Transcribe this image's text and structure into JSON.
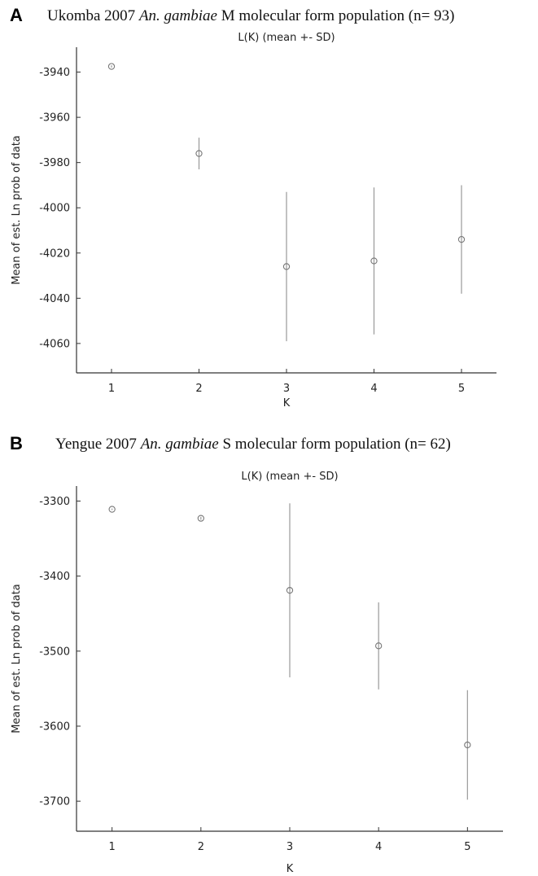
{
  "panels": [
    {
      "letter": "A",
      "title_pre": "Ukomba 2007 ",
      "title_italic": "An. gambiae",
      "title_post": " M molecular form population (n= 93)"
    },
    {
      "letter": "B",
      "title_pre": "Yengue 2007 ",
      "title_italic": "An. gambiae",
      "title_post": " S molecular form population (n= 62)"
    }
  ],
  "chart_data": [
    {
      "type": "scatter",
      "title": "L(K) (mean +- SD)",
      "xlabel": "K",
      "ylabel": "Mean of est. Ln prob of data",
      "xlim": [
        0.6,
        5.4
      ],
      "ylim": [
        -4073,
        -3929
      ],
      "xticks": [
        1,
        2,
        3,
        4,
        5
      ],
      "yticks": [
        -3940,
        -3960,
        -3980,
        -4000,
        -4020,
        -4040,
        -4060
      ],
      "grid": false,
      "points": [
        {
          "x": 1,
          "y": -3937.5,
          "sd": 0.5
        },
        {
          "x": 2,
          "y": -3976,
          "sd": 7
        },
        {
          "x": 3,
          "y": -4026,
          "sd": 33
        },
        {
          "x": 4,
          "y": -4023.5,
          "sd": 32.5
        },
        {
          "x": 5,
          "y": -4014,
          "sd": 24
        }
      ]
    },
    {
      "type": "scatter",
      "title": "L(K) (mean +- SD)",
      "xlabel": "K",
      "ylabel": "Mean of est. Ln prob of data",
      "xlim": [
        0.6,
        5.4
      ],
      "ylim": [
        -3740,
        -3280
      ],
      "xticks": [
        1,
        2,
        3,
        4,
        5
      ],
      "yticks": [
        -3300,
        -3400,
        -3500,
        -3600,
        -3700
      ],
      "grid": false,
      "points": [
        {
          "x": 1,
          "y": -3311,
          "sd": 1
        },
        {
          "x": 2,
          "y": -3323,
          "sd": 2
        },
        {
          "x": 3,
          "y": -3419,
          "sd": 116
        },
        {
          "x": 4,
          "y": -3493,
          "sd": 58
        },
        {
          "x": 5,
          "y": -3625,
          "sd": 73
        }
      ]
    }
  ]
}
